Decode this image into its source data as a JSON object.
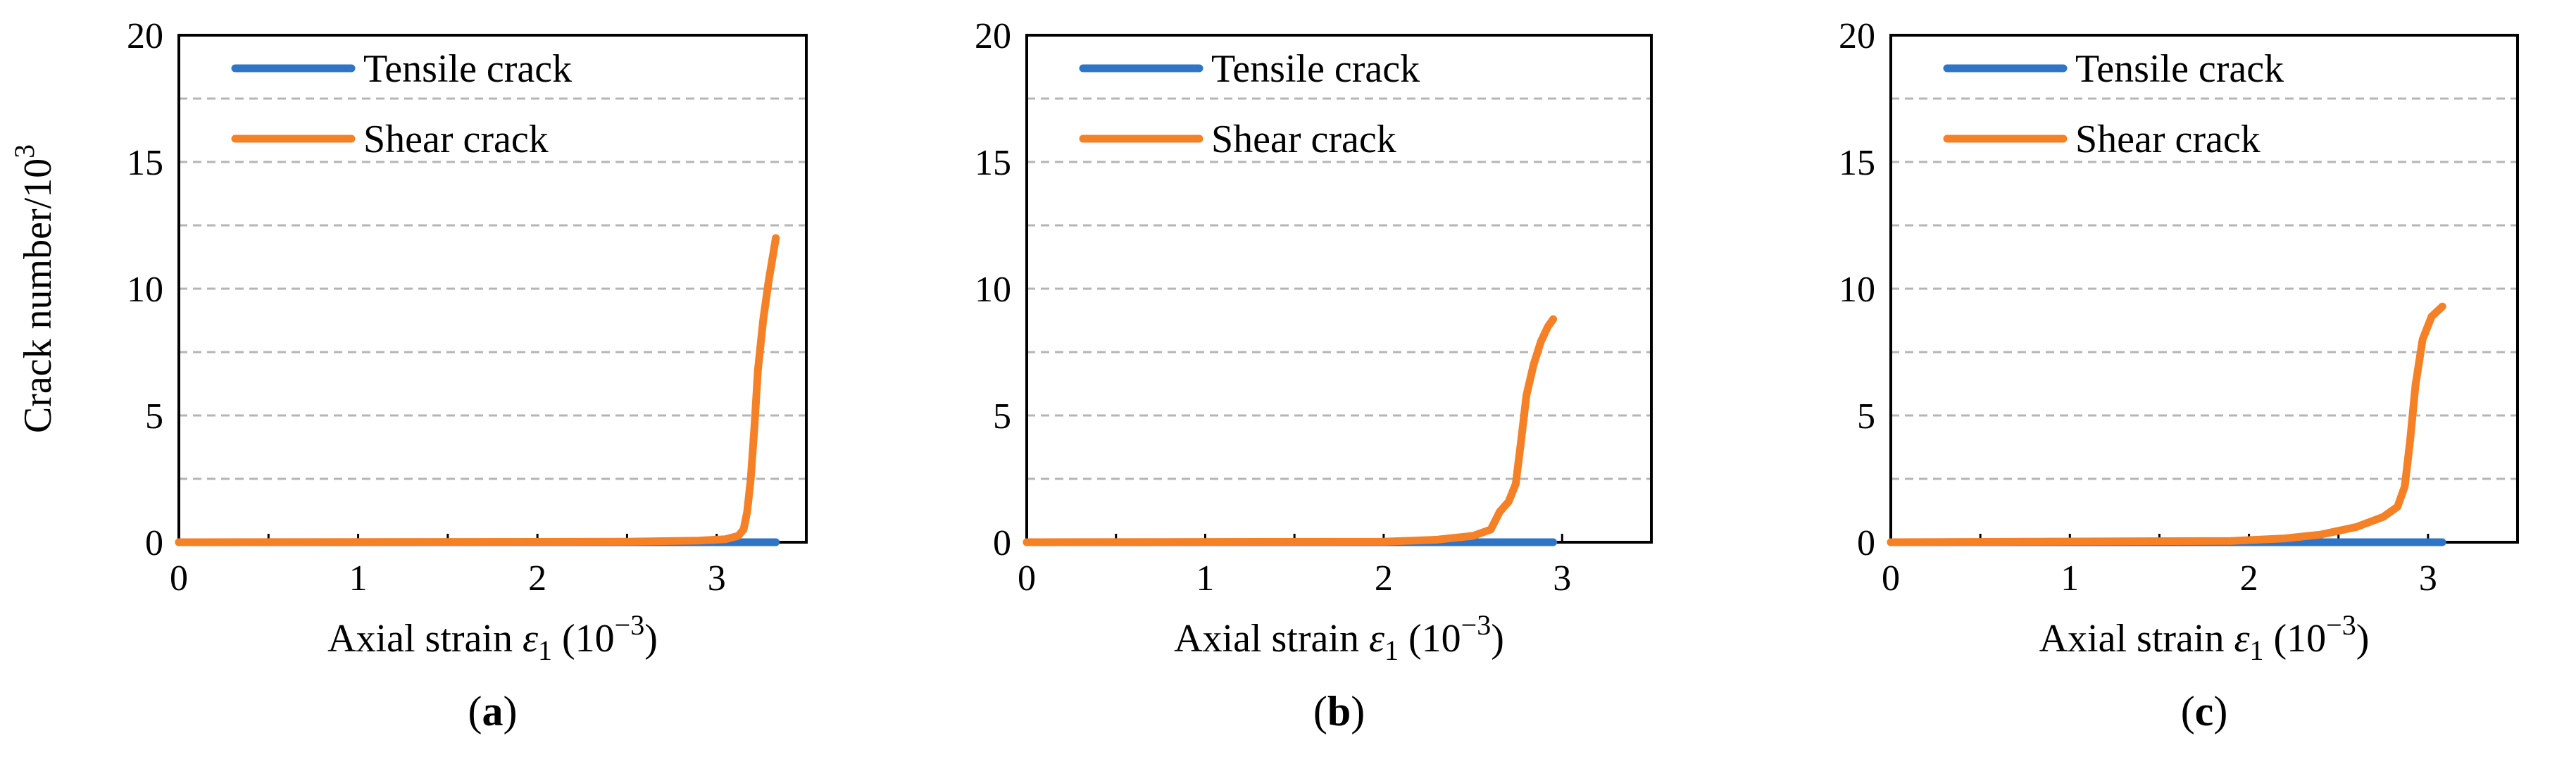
{
  "chart_data": [
    {
      "type": "line",
      "panel_label": "a",
      "xlabel_main": "Axial strain ",
      "xlabel_symbol": "ε",
      "xlabel_sub": "1",
      "xlabel_unit": " (10",
      "xlabel_exp": "−3",
      "xlabel_close": ")",
      "ylabel": "Crack number/10",
      "ylabel_exp": "3",
      "xlim": [
        0,
        3.5
      ],
      "ylim": [
        0,
        20
      ],
      "xticks": [
        "0",
        "1",
        "2",
        "3"
      ],
      "yticks": [
        "0",
        "5",
        "10",
        "15",
        "20"
      ],
      "grid": true,
      "legend": "top-left",
      "series": [
        {
          "name": "Tensile crack",
          "color": "#2E75C7",
          "points": [
            [
              0,
              0
            ],
            [
              3.33,
              0
            ]
          ]
        },
        {
          "name": "Shear crack",
          "color": "#F58025",
          "points": [
            [
              0,
              0
            ],
            [
              2.5,
              0.02
            ],
            [
              2.9,
              0.06
            ],
            [
              3.05,
              0.12
            ],
            [
              3.12,
              0.25
            ],
            [
              3.15,
              0.5
            ],
            [
              3.17,
              1.2
            ],
            [
              3.19,
              2.5
            ],
            [
              3.21,
              4.5
            ],
            [
              3.23,
              6.8
            ],
            [
              3.26,
              8.8
            ],
            [
              3.29,
              10.3
            ],
            [
              3.33,
              12.0
            ]
          ]
        }
      ]
    },
    {
      "type": "line",
      "panel_label": "b",
      "xlabel_main": "Axial strain ",
      "xlabel_symbol": "ε",
      "xlabel_sub": "1",
      "xlabel_unit": " (10",
      "xlabel_exp": "−3",
      "xlabel_close": ")",
      "ylabel": "",
      "ylabel_exp": "",
      "xlim": [
        0,
        3.5
      ],
      "ylim": [
        0,
        20
      ],
      "xticks": [
        "0",
        "1",
        "2",
        "3"
      ],
      "yticks": [
        "0",
        "5",
        "10",
        "15",
        "20"
      ],
      "grid": true,
      "legend": "top-left",
      "series": [
        {
          "name": "Tensile crack",
          "color": "#2E75C7",
          "points": [
            [
              0,
              0
            ],
            [
              2.95,
              0
            ]
          ]
        },
        {
          "name": "Shear crack",
          "color": "#F58025",
          "points": [
            [
              0,
              0
            ],
            [
              2.0,
              0.02
            ],
            [
              2.3,
              0.1
            ],
            [
              2.5,
              0.25
            ],
            [
              2.6,
              0.5
            ],
            [
              2.65,
              1.2
            ],
            [
              2.7,
              1.6
            ],
            [
              2.74,
              2.3
            ],
            [
              2.77,
              4.0
            ],
            [
              2.8,
              5.8
            ],
            [
              2.84,
              7.0
            ],
            [
              2.88,
              7.9
            ],
            [
              2.92,
              8.5
            ],
            [
              2.95,
              8.8
            ]
          ]
        }
      ]
    },
    {
      "type": "line",
      "panel_label": "c",
      "xlabel_main": "Axial strain ",
      "xlabel_symbol": "ε",
      "xlabel_sub": "1",
      "xlabel_unit": " (10",
      "xlabel_exp": "−3",
      "xlabel_close": ")",
      "ylabel": "",
      "ylabel_exp": "",
      "xlim": [
        0,
        3.5
      ],
      "ylim": [
        0,
        20
      ],
      "xticks": [
        "0",
        "1",
        "2",
        "3"
      ],
      "yticks": [
        "0",
        "5",
        "10",
        "15",
        "20"
      ],
      "grid": true,
      "legend": "top-left",
      "series": [
        {
          "name": "Tensile crack",
          "color": "#2E75C7",
          "points": [
            [
              0,
              0
            ],
            [
              3.08,
              0
            ]
          ]
        },
        {
          "name": "Shear crack",
          "color": "#F58025",
          "points": [
            [
              0,
              0
            ],
            [
              1.9,
              0.05
            ],
            [
              2.2,
              0.15
            ],
            [
              2.4,
              0.3
            ],
            [
              2.6,
              0.6
            ],
            [
              2.75,
              1.0
            ],
            [
              2.83,
              1.4
            ],
            [
              2.87,
              2.2
            ],
            [
              2.9,
              4.0
            ],
            [
              2.93,
              6.2
            ],
            [
              2.97,
              8.0
            ],
            [
              3.02,
              8.9
            ],
            [
              3.08,
              9.3
            ]
          ]
        }
      ]
    }
  ]
}
